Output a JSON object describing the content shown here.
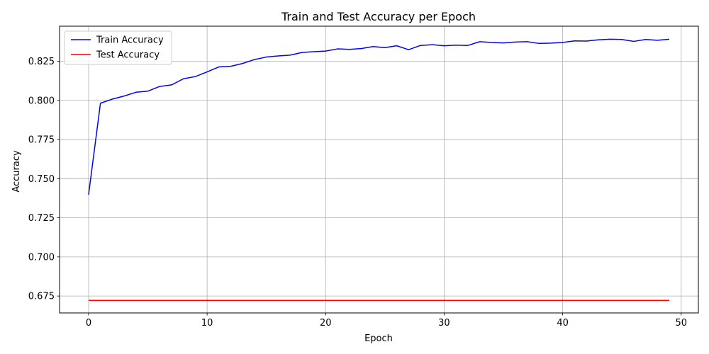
{
  "chart_data": {
    "type": "line",
    "title": "Train and Test Accuracy per Epoch",
    "xlabel": "Epoch",
    "ylabel": "Accuracy",
    "xlim": [
      -2.45,
      51.45
    ],
    "ylim": [
      0.6642,
      0.8474
    ],
    "x_ticks": [
      0,
      10,
      20,
      30,
      40,
      50
    ],
    "y_ticks": [
      0.675,
      0.7,
      0.725,
      0.75,
      0.775,
      0.8,
      0.825
    ],
    "y_tick_labels": [
      "0.675",
      "0.700",
      "0.725",
      "0.750",
      "0.775",
      "0.800",
      "0.825"
    ],
    "grid": true,
    "legend_position": "upper-left",
    "x": [
      0,
      1,
      2,
      3,
      4,
      5,
      6,
      7,
      8,
      9,
      10,
      11,
      12,
      13,
      14,
      15,
      16,
      17,
      18,
      19,
      20,
      21,
      22,
      23,
      24,
      25,
      26,
      27,
      28,
      29,
      30,
      31,
      32,
      33,
      34,
      35,
      36,
      37,
      38,
      39,
      40,
      41,
      42,
      43,
      44,
      45,
      46,
      47,
      48,
      49
    ],
    "series": [
      {
        "name": "Train Accuracy",
        "color": "#0000ff",
        "values": [
          0.7398,
          0.7982,
          0.8008,
          0.8028,
          0.8052,
          0.8059,
          0.8089,
          0.8099,
          0.8138,
          0.8152,
          0.8182,
          0.8214,
          0.8218,
          0.8236,
          0.8261,
          0.8277,
          0.8284,
          0.8289,
          0.8306,
          0.8311,
          0.8315,
          0.8329,
          0.8326,
          0.8331,
          0.8344,
          0.8337,
          0.8349,
          0.8324,
          0.8351,
          0.8356,
          0.8349,
          0.8353,
          0.8351,
          0.8375,
          0.837,
          0.8367,
          0.8373,
          0.8375,
          0.8364,
          0.8366,
          0.837,
          0.838,
          0.8379,
          0.8387,
          0.8391,
          0.8389,
          0.8377,
          0.8389,
          0.8384,
          0.8391
        ]
      },
      {
        "name": "Test Accuracy",
        "color": "#ff0000",
        "values": [
          0.6722,
          0.6722,
          0.6722,
          0.6722,
          0.6722,
          0.6722,
          0.6722,
          0.6722,
          0.6722,
          0.6722,
          0.6722,
          0.6722,
          0.6722,
          0.6722,
          0.6722,
          0.6722,
          0.6722,
          0.6722,
          0.6722,
          0.6722,
          0.6722,
          0.6722,
          0.6722,
          0.6722,
          0.6722,
          0.6722,
          0.6722,
          0.6722,
          0.6722,
          0.6722,
          0.6722,
          0.6722,
          0.6722,
          0.6722,
          0.6722,
          0.6722,
          0.6722,
          0.6722,
          0.6722,
          0.6722,
          0.6722,
          0.6722,
          0.6722,
          0.6722,
          0.6722,
          0.6722,
          0.6722,
          0.6722,
          0.6722,
          0.6722
        ]
      }
    ]
  }
}
